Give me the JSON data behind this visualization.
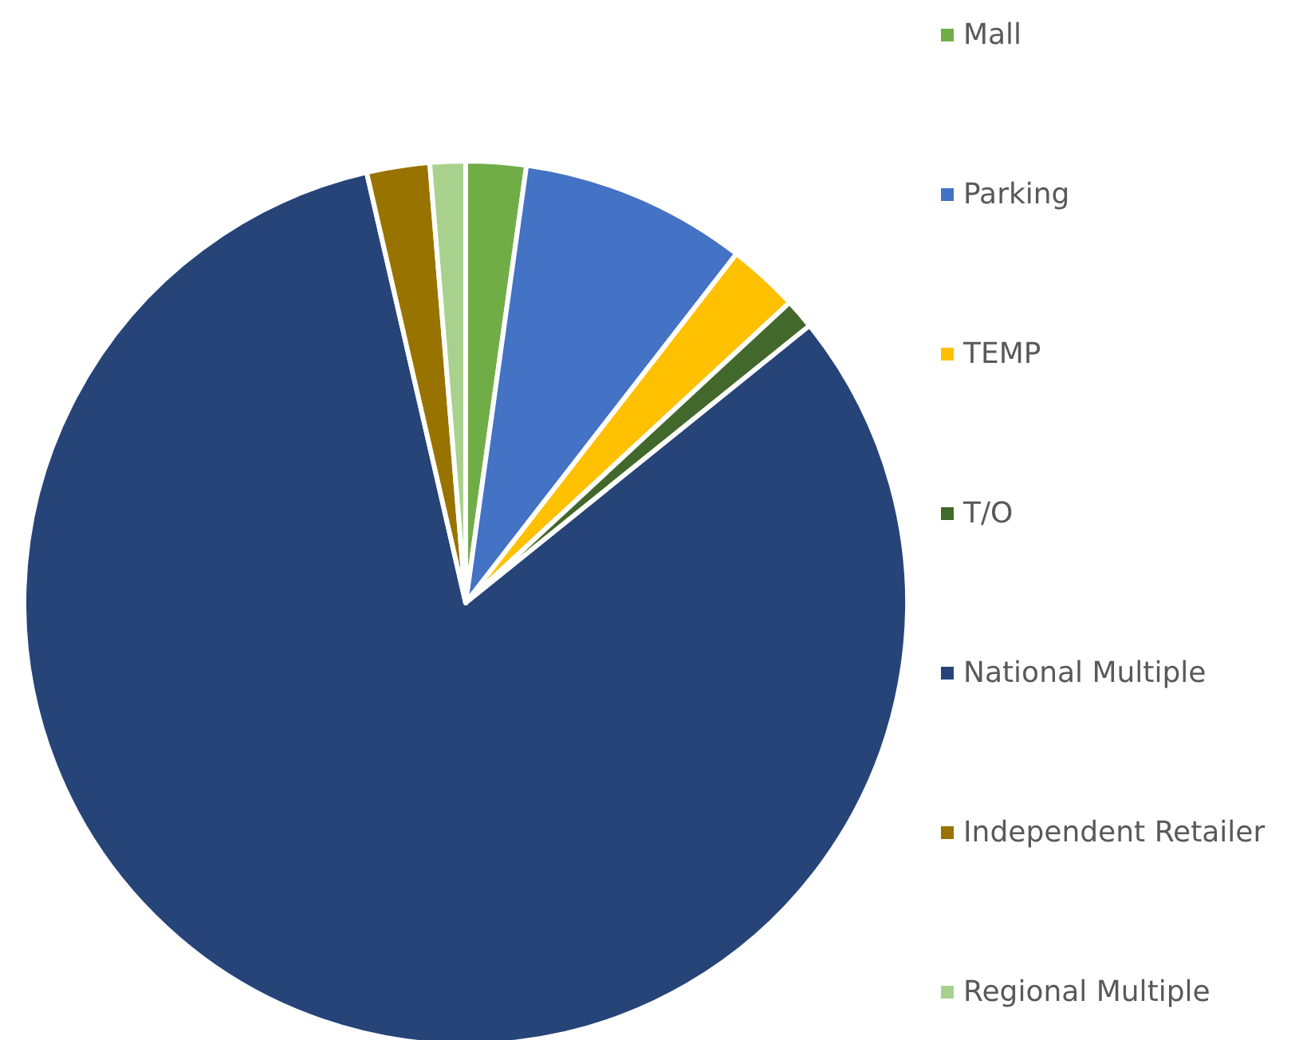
{
  "chart_data": {
    "type": "pie",
    "categories": [
      "Mall",
      "Parking",
      "TEMP",
      "T/O",
      "National Multiple",
      "Independent Retailer",
      "Regional Multiple"
    ],
    "values": [
      2.2,
      8.3,
      2.6,
      1.1,
      82.2,
      2.3,
      1.3
    ],
    "colors": [
      "#70ad47",
      "#4472c4",
      "#ffc000",
      "#43682b",
      "#264478",
      "#997300",
      "#a9d18e"
    ],
    "legend": "right"
  }
}
